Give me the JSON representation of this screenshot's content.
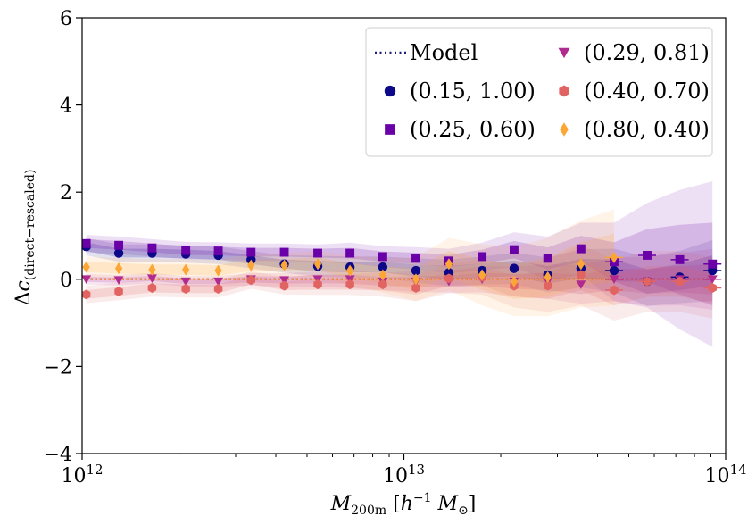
{
  "chart_data": {
    "type": "scatter",
    "xscale": "log",
    "xlim": [
      1000000000000.0,
      100000000000000.0
    ],
    "ylim": [
      -4,
      6
    ],
    "grid": false,
    "legend_position": "top-right",
    "xlabel": "M_200m [h^-1 M_⊙]",
    "ylabel": "Δc_(direct−rescaled)",
    "xticks": [
      {
        "value": 1000000000000.0,
        "base": "10",
        "exp": "12"
      },
      {
        "value": 10000000000000.0,
        "base": "10",
        "exp": "13"
      },
      {
        "value": 100000000000000.0,
        "base": "10",
        "exp": "14"
      }
    ],
    "yticks": [
      {
        "value": -4,
        "label": "−4"
      },
      {
        "value": -2,
        "label": "−2"
      },
      {
        "value": 0,
        "label": "0"
      },
      {
        "value": 2,
        "label": "2"
      },
      {
        "value": 4,
        "label": "4"
      },
      {
        "value": 6,
        "label": "6"
      }
    ],
    "model": {
      "name": "Model",
      "value": 0.0,
      "color": "#1a1a80"
    },
    "series": [
      {
        "name": "(0.15, 1.00)",
        "color": "#0d0887",
        "marker": "circle",
        "x": [
          1030000000000.0,
          1300000000000.0,
          1650000000000.0,
          2100000000000.0,
          2650000000000.0,
          3350000000000.0,
          4250000000000.0,
          5400000000000.0,
          6800000000000.0,
          8600000000000.0,
          10900000000000.0,
          13800000000000.0,
          17500000000000.0,
          22000000000000.0,
          28000000000000.0,
          35500000000000.0,
          45000000000000.0,
          57000000000000.0,
          72000000000000.0,
          91000000000000.0
        ],
        "y": [
          0.75,
          0.6,
          0.6,
          0.58,
          0.55,
          0.45,
          0.35,
          0.3,
          0.28,
          0.28,
          0.2,
          0.15,
          0.2,
          0.25,
          0.1,
          0.25,
          0.2,
          -0.05,
          0.05,
          0.2
        ],
        "err": [
          0.1,
          0.1,
          0.1,
          0.1,
          0.1,
          0.1,
          0.1,
          0.12,
          0.12,
          0.12,
          0.14,
          0.15,
          0.16,
          0.18,
          0.2,
          0.22,
          0.25,
          0.28,
          0.3,
          0.35
        ]
      },
      {
        "name": "(0.25, 0.60)",
        "color": "#6a00a8",
        "marker": "square",
        "x": [
          1030000000000.0,
          1300000000000.0,
          1650000000000.0,
          2100000000000.0,
          2650000000000.0,
          3350000000000.0,
          4250000000000.0,
          5400000000000.0,
          6800000000000.0,
          8600000000000.0,
          10900000000000.0,
          13800000000000.0,
          17500000000000.0,
          22000000000000.0,
          28000000000000.0,
          35500000000000.0,
          45000000000000.0,
          57000000000000.0,
          72000000000000.0,
          91000000000000.0
        ],
        "y": [
          0.82,
          0.78,
          0.72,
          0.66,
          0.65,
          0.62,
          0.62,
          0.6,
          0.6,
          0.52,
          0.48,
          0.42,
          0.52,
          0.68,
          0.48,
          0.7,
          0.4,
          0.55,
          0.45,
          0.35
        ],
        "err": [
          0.1,
          0.1,
          0.1,
          0.1,
          0.1,
          0.1,
          0.1,
          0.1,
          0.12,
          0.12,
          0.13,
          0.14,
          0.16,
          0.2,
          0.25,
          0.3,
          0.45,
          0.6,
          0.8,
          0.95
        ]
      },
      {
        "name": "(0.29, 0.81)",
        "color": "#b12a90",
        "marker": "triangle-down",
        "x": [
          1030000000000.0,
          1300000000000.0,
          1650000000000.0,
          2100000000000.0,
          2650000000000.0,
          3350000000000.0,
          4250000000000.0,
          5400000000000.0,
          6800000000000.0,
          8600000000000.0,
          10900000000000.0,
          13800000000000.0,
          17500000000000.0,
          22000000000000.0,
          28000000000000.0,
          35500000000000.0,
          45000000000000.0,
          57000000000000.0,
          72000000000000.0,
          91000000000000.0
        ],
        "y": [
          0.0,
          -0.02,
          0.02,
          -0.05,
          -0.05,
          0.0,
          -0.02,
          0.0,
          0.0,
          -0.05,
          -0.05,
          -0.05,
          0.0,
          -0.05,
          -0.05,
          -0.12,
          0.0,
          -0.05,
          0.0,
          0.0
        ],
        "err": [
          0.06,
          0.06,
          0.06,
          0.06,
          0.06,
          0.07,
          0.08,
          0.09,
          0.1,
          0.1,
          0.12,
          0.13,
          0.15,
          0.17,
          0.2,
          0.22,
          0.25,
          0.28,
          0.3,
          0.35
        ]
      },
      {
        "name": "(0.40, 0.70)",
        "color": "#e16462",
        "marker": "hexagon",
        "x": [
          1030000000000.0,
          1300000000000.0,
          1650000000000.0,
          2100000000000.0,
          2650000000000.0,
          3350000000000.0,
          4250000000000.0,
          5400000000000.0,
          6800000000000.0,
          8600000000000.0,
          10900000000000.0,
          13800000000000.0,
          17500000000000.0,
          22000000000000.0,
          28000000000000.0,
          35500000000000.0,
          45000000000000.0,
          57000000000000.0,
          72000000000000.0,
          91000000000000.0
        ],
        "y": [
          -0.35,
          -0.28,
          -0.2,
          -0.22,
          -0.22,
          -0.02,
          -0.15,
          -0.12,
          -0.12,
          -0.12,
          -0.2,
          0.02,
          0.05,
          -0.15,
          -0.15,
          0.1,
          -0.25,
          -0.05,
          -0.05,
          -0.2
        ],
        "err": [
          0.1,
          0.1,
          0.1,
          0.1,
          0.1,
          0.1,
          0.1,
          0.12,
          0.12,
          0.14,
          0.15,
          0.17,
          0.2,
          0.25,
          0.3,
          0.35,
          0.35,
          0.35,
          0.35,
          0.35
        ]
      },
      {
        "name": "(0.80, 0.40)",
        "color": "#fca636",
        "marker": "diamond",
        "x": [
          1030000000000.0,
          1300000000000.0,
          1650000000000.0,
          2100000000000.0,
          2650000000000.0,
          3350000000000.0,
          4250000000000.0,
          5400000000000.0,
          6800000000000.0,
          8600000000000.0,
          10900000000000.0,
          13800000000000.0,
          17500000000000.0,
          22000000000000.0,
          28000000000000.0,
          35500000000000.0,
          45000000000000.0
        ],
        "y": [
          0.28,
          0.25,
          0.22,
          0.22,
          0.2,
          0.32,
          0.32,
          0.35,
          0.2,
          0.1,
          0.0,
          0.35,
          0.1,
          -0.05,
          0.05,
          0.35,
          0.5
        ],
        "err": [
          0.12,
          0.12,
          0.12,
          0.12,
          0.12,
          0.13,
          0.14,
          0.15,
          0.17,
          0.2,
          0.25,
          0.3,
          0.35,
          0.4,
          0.45,
          0.5,
          0.55
        ]
      }
    ]
  }
}
